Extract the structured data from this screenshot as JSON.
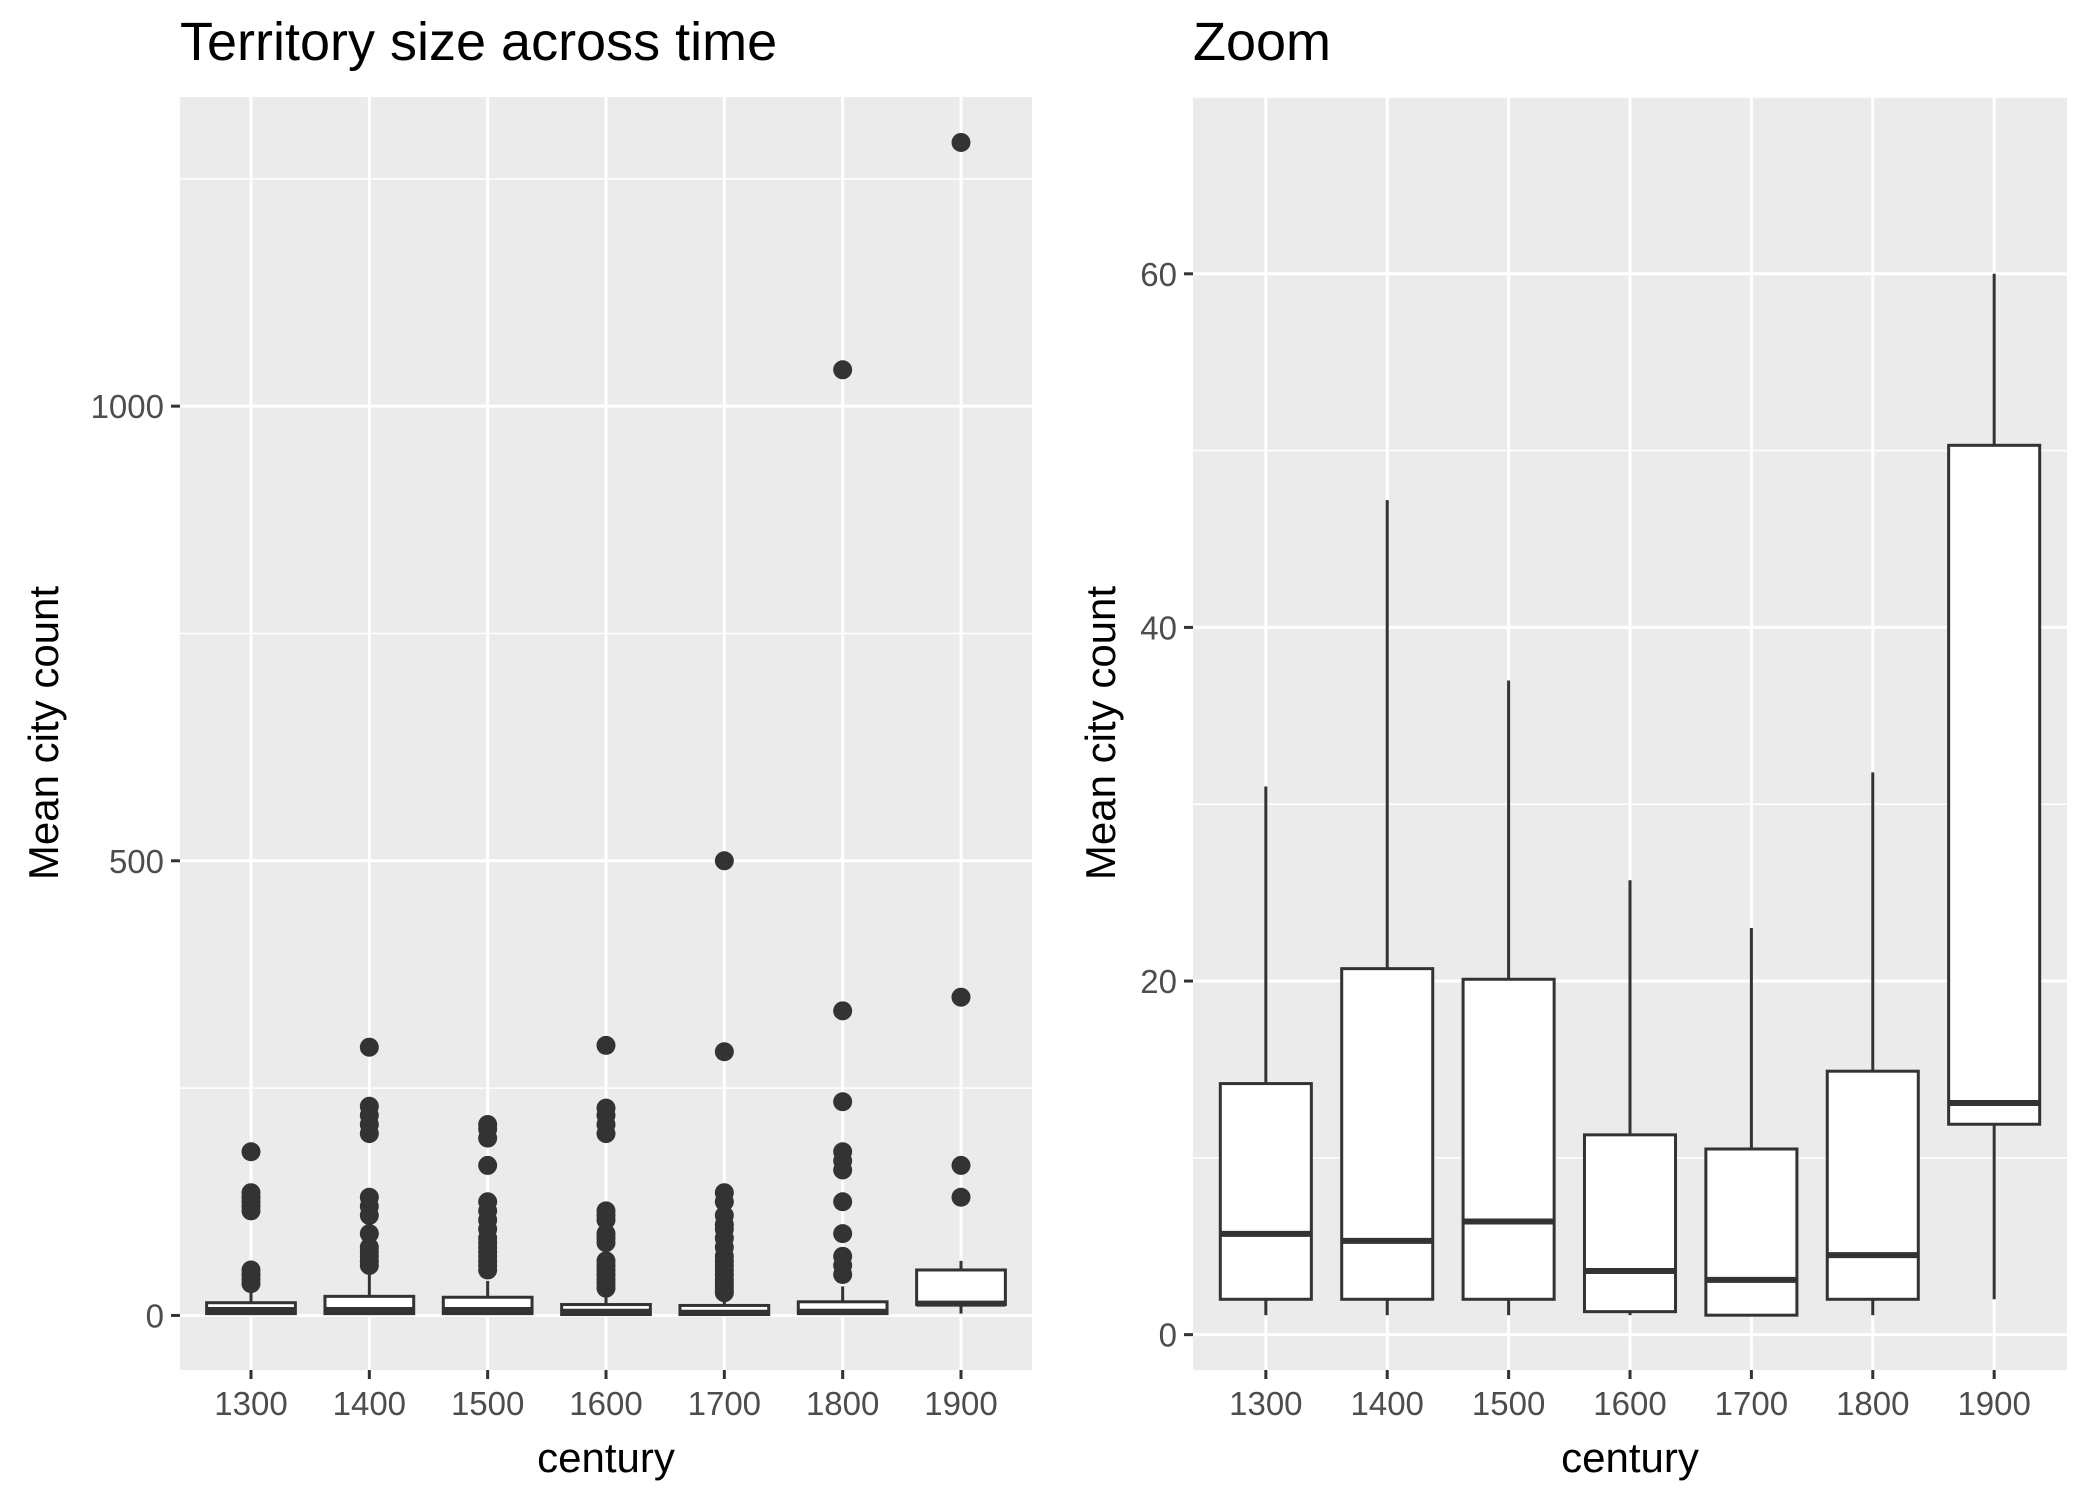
{
  "chart_data": [
    {
      "type": "box",
      "title": "Territory size across time",
      "xlabel": "century",
      "ylabel": "Mean city count",
      "categories": [
        "1300",
        "1400",
        "1500",
        "1600",
        "1700",
        "1800",
        "1900"
      ],
      "ylim": [
        -60,
        1340
      ],
      "yticks": [
        0,
        500,
        1000
      ],
      "grid": true,
      "boxes": [
        {
          "q1": 2,
          "median": 6,
          "q3": 14,
          "whisker_low": 1,
          "whisker_high": 30,
          "outliers": [
            35,
            40,
            45,
            50,
            115,
            120,
            125,
            130,
            135,
            180
          ]
        },
        {
          "q1": 2,
          "median": 6,
          "q3": 21,
          "whisker_low": 1,
          "whisker_high": 45,
          "outliers": [
            55,
            60,
            65,
            70,
            75,
            90,
            110,
            120,
            130,
            200,
            210,
            220,
            230,
            295
          ]
        },
        {
          "q1": 2,
          "median": 6,
          "q3": 20,
          "whisker_low": 1,
          "whisker_high": 38,
          "outliers": [
            50,
            55,
            60,
            65,
            70,
            75,
            80,
            85,
            95,
            105,
            115,
            125,
            165,
            195,
            205,
            210
          ]
        },
        {
          "q1": 1,
          "median": 4,
          "q3": 12,
          "whisker_low": 1,
          "whisker_high": 26,
          "outliers": [
            30,
            35,
            40,
            45,
            50,
            55,
            60,
            80,
            85,
            90,
            105,
            110,
            115,
            200,
            210,
            220,
            228,
            297
          ]
        },
        {
          "q1": 1,
          "median": 3,
          "q3": 11,
          "whisker_low": 1,
          "whisker_high": 24,
          "outliers": [
            25,
            28,
            32,
            36,
            40,
            45,
            50,
            55,
            60,
            65,
            75,
            85,
            95,
            100,
            110,
            125,
            135,
            290,
            500
          ]
        },
        {
          "q1": 2,
          "median": 4,
          "q3": 15,
          "whisker_low": 1,
          "whisker_high": 32,
          "outliers": [
            45,
            55,
            65,
            90,
            125,
            160,
            170,
            180,
            235,
            335,
            1040
          ]
        },
        {
          "q1": 12,
          "median": 13,
          "q3": 50,
          "whisker_low": 2,
          "whisker_high": 60,
          "outliers": [
            130,
            165,
            350,
            1290
          ]
        }
      ]
    },
    {
      "type": "box",
      "title": "Zoom",
      "xlabel": "century",
      "ylabel": "Mean city count",
      "categories": [
        "1300",
        "1400",
        "1500",
        "1600",
        "1700",
        "1800",
        "1900"
      ],
      "ylim": [
        -2,
        70
      ],
      "yticks": [
        0,
        20,
        40,
        60
      ],
      "grid": true,
      "boxes": [
        {
          "q1": 2,
          "median": 5.7,
          "q3": 14.2,
          "whisker_low": 1.1,
          "whisker_high": 31
        },
        {
          "q1": 2,
          "median": 5.3,
          "q3": 20.7,
          "whisker_low": 1.1,
          "whisker_high": 47.2
        },
        {
          "q1": 2,
          "median": 6.4,
          "q3": 20.1,
          "whisker_low": 1.1,
          "whisker_high": 37
        },
        {
          "q1": 1.3,
          "median": 3.6,
          "q3": 11.3,
          "whisker_low": 1.1,
          "whisker_high": 25.7
        },
        {
          "q1": 1.1,
          "median": 3.1,
          "q3": 10.5,
          "whisker_low": 1.1,
          "whisker_high": 23
        },
        {
          "q1": 2,
          "median": 4.5,
          "q3": 14.9,
          "whisker_low": 1.1,
          "whisker_high": 31.8
        },
        {
          "q1": 11.9,
          "median": 13.1,
          "q3": 50.3,
          "whisker_low": 2,
          "whisker_high": 60
        }
      ]
    }
  ]
}
